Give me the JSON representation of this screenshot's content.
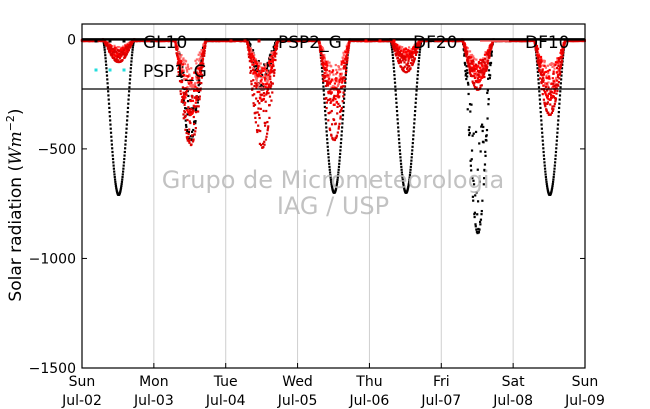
{
  "chart_data": {
    "type": "scatter",
    "ylabel_main": "Solar radiation (",
    "ylabel_unit": "Wm",
    "ylabel_exp": "−2",
    "ylabel_close": ")",
    "ylim": [
      -1500,
      70
    ],
    "yticks": [
      {
        "value": 0,
        "label": "0"
      },
      {
        "value": -500,
        "label": "−500"
      },
      {
        "value": -1000,
        "label": "−1000"
      },
      {
        "value": -1500,
        "label": "−1500"
      }
    ],
    "xlim_days": [
      0,
      7
    ],
    "xticks": [
      {
        "day": 0,
        "weekday": "Sun",
        "date": "Jul-02"
      },
      {
        "day": 1,
        "weekday": "Mon",
        "date": "Jul-03"
      },
      {
        "day": 2,
        "weekday": "Tue",
        "date": "Jul-04"
      },
      {
        "day": 3,
        "weekday": "Wed",
        "date": "Jul-05"
      },
      {
        "day": 4,
        "weekday": "Thu",
        "date": "Jul-06"
      },
      {
        "day": 5,
        "weekday": "Fri",
        "date": "Jul-07"
      },
      {
        "day": 6,
        "weekday": "Sat",
        "date": "Jul-08"
      },
      {
        "day": 7,
        "weekday": "Sun",
        "date": "Jul-09"
      }
    ],
    "grid": "vertical",
    "legend_position": "top",
    "series": [
      {
        "name": "GL10",
        "color": "#000000",
        "style": "dots",
        "daily_min": [
          -710,
          -400,
          -200,
          -700,
          -700,
          -770,
          -710
        ]
      },
      {
        "name": "PSP2_G",
        "color": "#dd0000",
        "style": "dots",
        "daily_min": [
          -90,
          -420,
          -430,
          -400,
          -130,
          -200,
          -300
        ]
      },
      {
        "name": "DF20",
        "color": "#ff0000",
        "style": "dots",
        "daily_min": [
          -70,
          -300,
          -240,
          -260,
          -80,
          -170,
          -240
        ]
      },
      {
        "name": "DF10",
        "color": "#ff6666",
        "style": "line",
        "daily_min": [
          -60,
          -200,
          -200,
          -200,
          -70,
          -150,
          -200
        ]
      },
      {
        "name": "PSP1_G",
        "color": "#22dddd",
        "style": "dots",
        "daily_min": [
          0,
          0,
          0,
          0,
          0,
          0,
          0
        ]
      }
    ]
  },
  "watermark": {
    "line1": "Grupo de Micrometeorologia",
    "line2": "IAG / USP"
  }
}
